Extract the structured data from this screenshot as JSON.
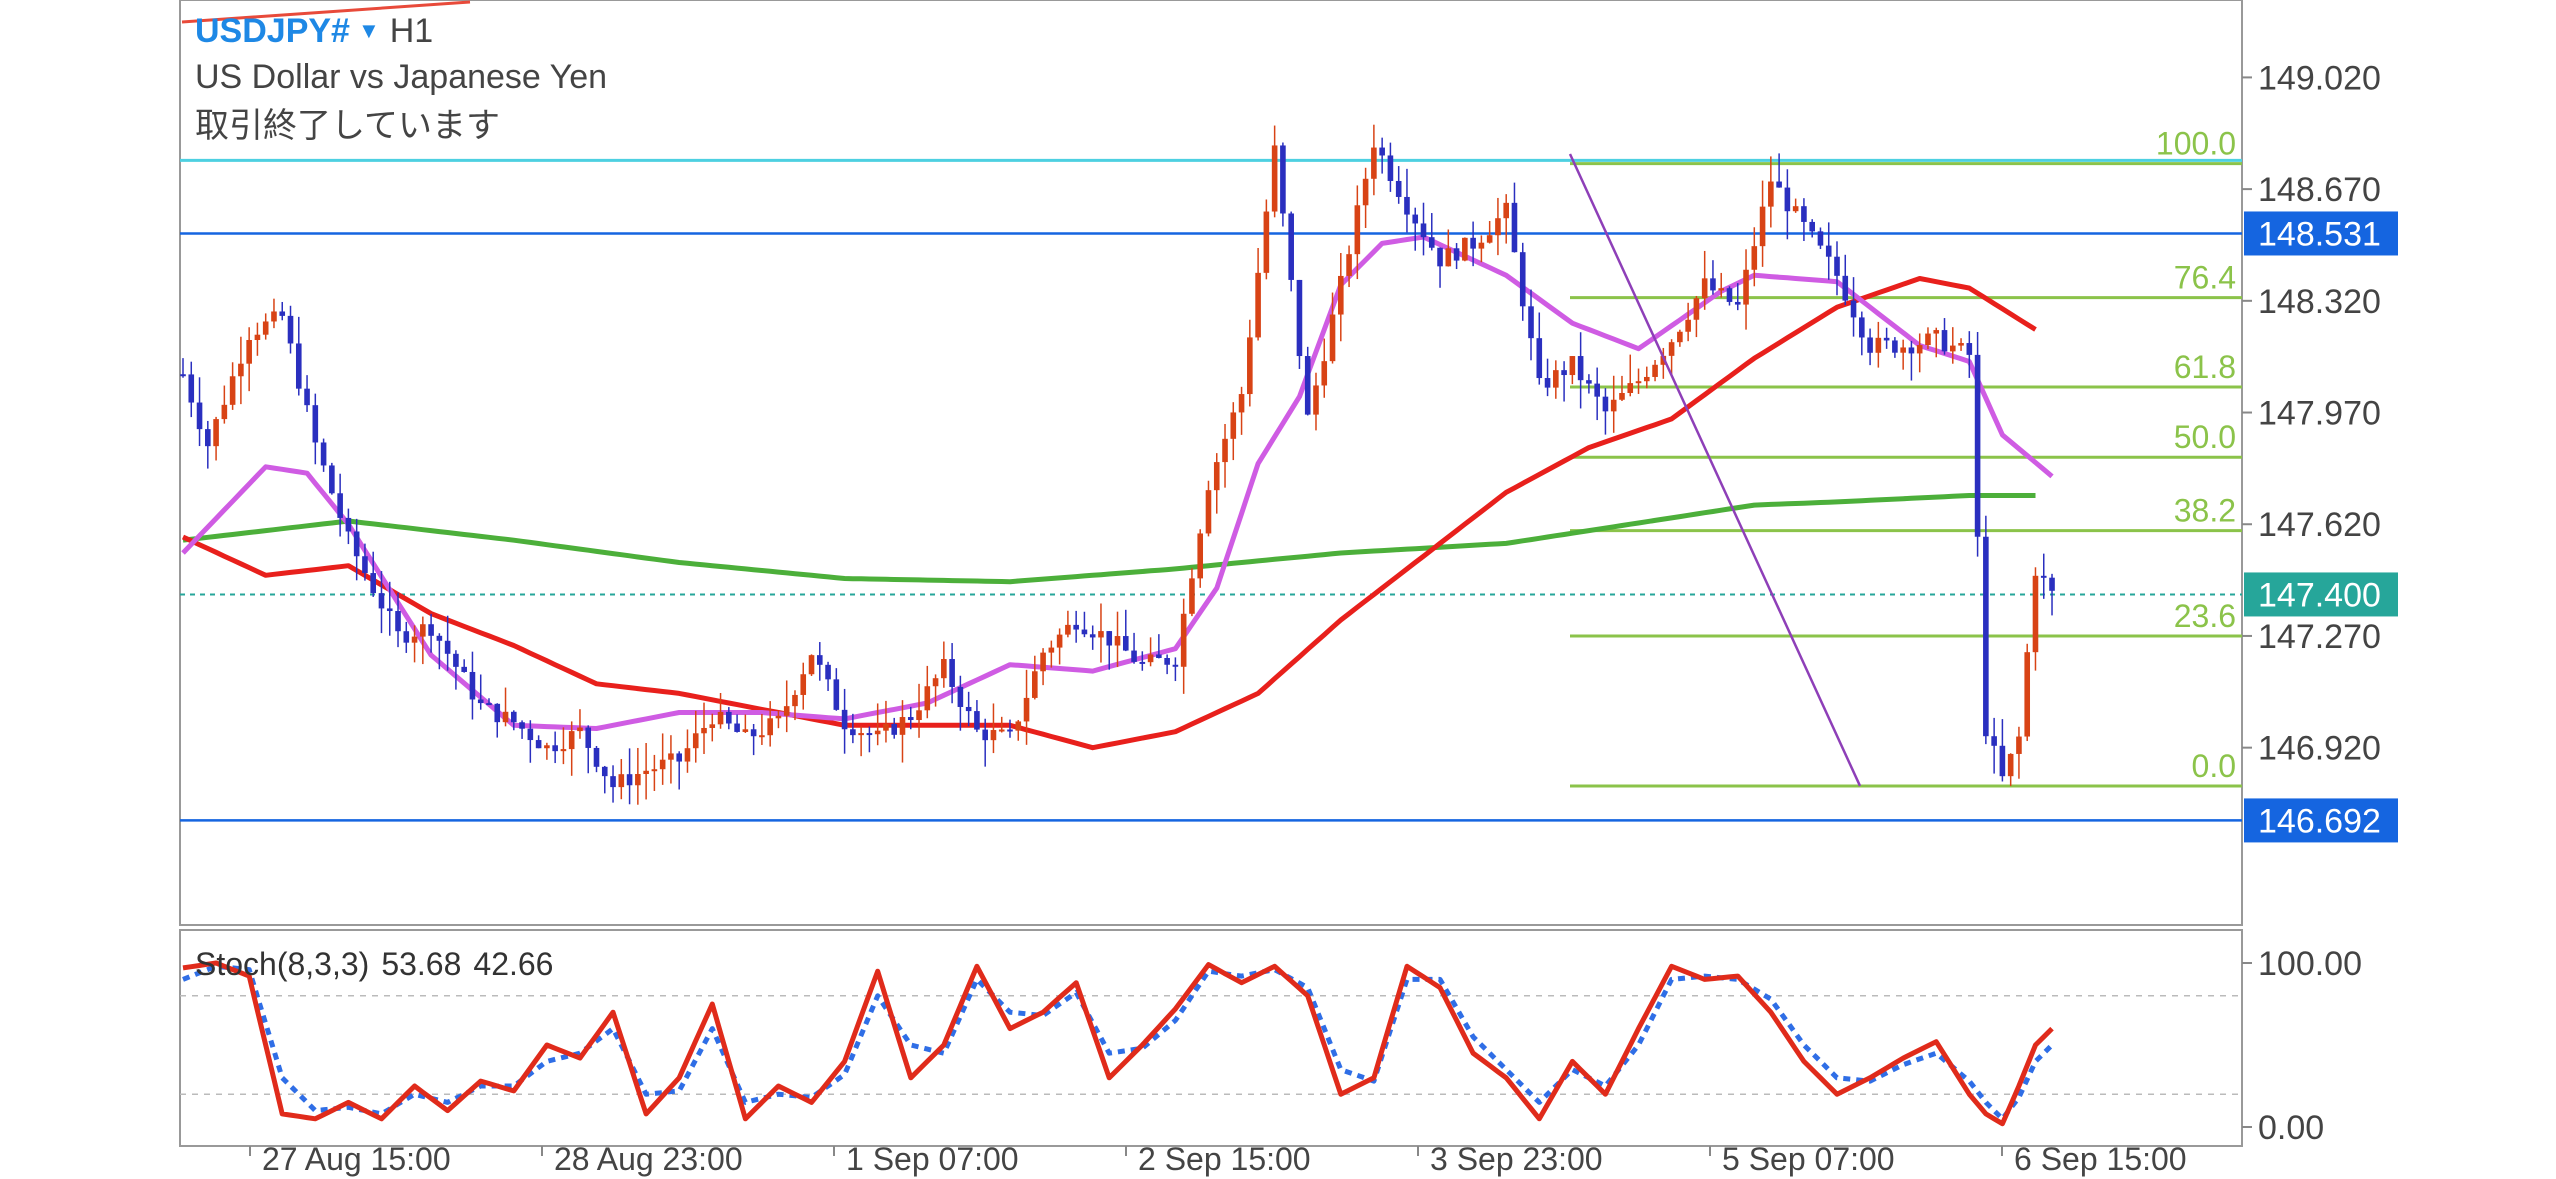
{
  "header": {
    "symbol": "USDJPY#",
    "timeframe": "H1",
    "instrument_name": "US Dollar vs Japanese Yen",
    "market_status": "取引終了しています"
  },
  "colors": {
    "bull_candle": "#d84315",
    "bear_candle": "#2a2fbf",
    "ma_red": "#e8201c",
    "ma_green": "#4caf3a",
    "ma_violet": "#cf5ce3",
    "fib_green": "#8bc34a",
    "price_tag_current": "#26a69a",
    "price_tag_level": "#1565e0",
    "upper_line": "#4dd0e1",
    "trend_line": "#8e3fb8",
    "stoch_main": "#e02b1b",
    "stoch_signal": "#2f6ee6"
  },
  "price_axis": {
    "ticks": [
      "149.020",
      "148.670",
      "148.320",
      "147.970",
      "147.620",
      "147.270",
      "146.920"
    ]
  },
  "price_tags": {
    "upper_level": "148.531",
    "current": "147.400",
    "lower_level": "146.692"
  },
  "fib_levels": [
    {
      "label": "100.0",
      "price": 148.75
    },
    {
      "label": "76.4",
      "price": 148.33
    },
    {
      "label": "61.8",
      "price": 148.05
    },
    {
      "label": "50.0",
      "price": 147.83
    },
    {
      "label": "38.2",
      "price": 147.6
    },
    {
      "label": "23.6",
      "price": 147.27
    },
    {
      "label": "0.0",
      "price": 146.8
    }
  ],
  "time_axis": [
    "27 Aug 15:00",
    "28 Aug 23:00",
    "1 Sep 07:00",
    "2 Sep 15:00",
    "3 Sep 23:00",
    "5 Sep 07:00",
    "6 Sep 15:00"
  ],
  "stochastic": {
    "name": "Stoch(8,3,3)",
    "main_value": "53.68",
    "signal_value": "42.66",
    "axis_ticks": [
      "100.00",
      "0.00"
    ]
  },
  "chart_data": {
    "type": "candlestick",
    "y_range": [
      146.38,
      149.25
    ],
    "candle_key_points": [
      [
        0,
        148.09
      ],
      [
        3,
        147.87
      ],
      [
        8,
        148.22
      ],
      [
        12,
        148.27
      ],
      [
        16,
        147.87
      ],
      [
        20,
        147.57
      ],
      [
        26,
        147.27
      ],
      [
        30,
        147.3
      ],
      [
        36,
        147.05
      ],
      [
        40,
        147.0
      ],
      [
        44,
        146.92
      ],
      [
        48,
        146.97
      ],
      [
        52,
        146.8
      ],
      [
        56,
        146.85
      ],
      [
        60,
        146.88
      ],
      [
        64,
        147.02
      ],
      [
        68,
        146.95
      ],
      [
        72,
        147.0
      ],
      [
        76,
        147.22
      ],
      [
        80,
        147.0
      ],
      [
        84,
        146.95
      ],
      [
        88,
        147.02
      ],
      [
        92,
        147.17
      ],
      [
        96,
        146.97
      ],
      [
        100,
        146.95
      ],
      [
        104,
        147.22
      ],
      [
        108,
        147.32
      ],
      [
        112,
        147.26
      ],
      [
        116,
        147.18
      ],
      [
        120,
        147.2
      ],
      [
        124,
        147.75
      ],
      [
        128,
        148.03
      ],
      [
        132,
        148.79
      ],
      [
        136,
        147.95
      ],
      [
        140,
        148.37
      ],
      [
        144,
        148.82
      ],
      [
        148,
        148.62
      ],
      [
        152,
        148.45
      ],
      [
        156,
        148.5
      ],
      [
        160,
        148.6
      ],
      [
        164,
        148.05
      ],
      [
        168,
        148.12
      ],
      [
        172,
        147.97
      ],
      [
        176,
        148.07
      ],
      [
        180,
        148.2
      ],
      [
        184,
        148.37
      ],
      [
        188,
        148.3
      ],
      [
        192,
        148.7
      ],
      [
        196,
        148.55
      ],
      [
        200,
        148.4
      ],
      [
        204,
        148.18
      ],
      [
        208,
        148.18
      ],
      [
        212,
        148.2
      ],
      [
        216,
        148.15
      ],
      [
        218,
        146.98
      ],
      [
        220,
        146.82
      ],
      [
        222,
        146.95
      ],
      [
        224,
        147.48
      ],
      [
        226,
        147.4
      ]
    ],
    "ma_red_key_points": [
      [
        0,
        147.58
      ],
      [
        10,
        147.46
      ],
      [
        20,
        147.49
      ],
      [
        30,
        147.34
      ],
      [
        40,
        147.24
      ],
      [
        50,
        147.12
      ],
      [
        60,
        147.09
      ],
      [
        80,
        146.99
      ],
      [
        100,
        146.99
      ],
      [
        110,
        146.92
      ],
      [
        120,
        146.97
      ],
      [
        130,
        147.09
      ],
      [
        140,
        147.32
      ],
      [
        150,
        147.52
      ],
      [
        160,
        147.72
      ],
      [
        170,
        147.86
      ],
      [
        180,
        147.95
      ],
      [
        190,
        148.14
      ],
      [
        200,
        148.3
      ],
      [
        210,
        148.39
      ],
      [
        216,
        148.36
      ],
      [
        224,
        148.23
      ]
    ],
    "ma_green_key_points": [
      [
        0,
        147.57
      ],
      [
        20,
        147.63
      ],
      [
        40,
        147.57
      ],
      [
        60,
        147.5
      ],
      [
        80,
        147.45
      ],
      [
        100,
        147.44
      ],
      [
        120,
        147.48
      ],
      [
        140,
        147.53
      ],
      [
        160,
        147.56
      ],
      [
        180,
        147.64
      ],
      [
        190,
        147.68
      ],
      [
        200,
        147.69
      ],
      [
        216,
        147.71
      ],
      [
        224,
        147.71
      ]
    ],
    "ma_violet_key_points": [
      [
        0,
        147.53
      ],
      [
        10,
        147.8
      ],
      [
        15,
        147.78
      ],
      [
        20,
        147.62
      ],
      [
        30,
        147.21
      ],
      [
        40,
        146.99
      ],
      [
        50,
        146.98
      ],
      [
        60,
        147.03
      ],
      [
        70,
        147.03
      ],
      [
        80,
        147.01
      ],
      [
        90,
        147.06
      ],
      [
        100,
        147.18
      ],
      [
        110,
        147.16
      ],
      [
        120,
        147.23
      ],
      [
        125,
        147.42
      ],
      [
        130,
        147.81
      ],
      [
        135,
        148.02
      ],
      [
        140,
        148.37
      ],
      [
        145,
        148.5
      ],
      [
        150,
        148.52
      ],
      [
        160,
        148.4
      ],
      [
        168,
        148.25
      ],
      [
        176,
        148.17
      ],
      [
        186,
        148.35
      ],
      [
        190,
        148.4
      ],
      [
        200,
        148.38
      ],
      [
        210,
        148.18
      ],
      [
        216,
        148.13
      ],
      [
        220,
        147.9
      ],
      [
        226,
        147.77
      ]
    ],
    "stoch_main_key_points": [
      [
        0,
        97
      ],
      [
        4,
        100
      ],
      [
        8,
        92
      ],
      [
        12,
        8
      ],
      [
        16,
        5
      ],
      [
        20,
        15
      ],
      [
        24,
        5
      ],
      [
        28,
        25
      ],
      [
        32,
        10
      ],
      [
        36,
        28
      ],
      [
        40,
        22
      ],
      [
        44,
        50
      ],
      [
        48,
        42
      ],
      [
        52,
        70
      ],
      [
        56,
        8
      ],
      [
        60,
        30
      ],
      [
        64,
        75
      ],
      [
        68,
        5
      ],
      [
        72,
        25
      ],
      [
        76,
        15
      ],
      [
        80,
        40
      ],
      [
        84,
        95
      ],
      [
        88,
        30
      ],
      [
        92,
        50
      ],
      [
        96,
        98
      ],
      [
        100,
        60
      ],
      [
        104,
        70
      ],
      [
        108,
        88
      ],
      [
        112,
        30
      ],
      [
        116,
        50
      ],
      [
        120,
        72
      ],
      [
        124,
        99
      ],
      [
        128,
        88
      ],
      [
        132,
        98
      ],
      [
        136,
        80
      ],
      [
        140,
        20
      ],
      [
        144,
        30
      ],
      [
        148,
        98
      ],
      [
        152,
        85
      ],
      [
        156,
        45
      ],
      [
        160,
        30
      ],
      [
        164,
        5
      ],
      [
        168,
        40
      ],
      [
        172,
        20
      ],
      [
        176,
        60
      ],
      [
        180,
        98
      ],
      [
        184,
        90
      ],
      [
        188,
        92
      ],
      [
        192,
        70
      ],
      [
        196,
        40
      ],
      [
        200,
        20
      ],
      [
        204,
        30
      ],
      [
        208,
        42
      ],
      [
        212,
        52
      ],
      [
        216,
        20
      ],
      [
        218,
        8
      ],
      [
        220,
        2
      ],
      [
        222,
        25
      ],
      [
        224,
        50
      ],
      [
        226,
        60
      ]
    ],
    "stoch_signal_key_points": [
      [
        0,
        90
      ],
      [
        4,
        98
      ],
      [
        8,
        96
      ],
      [
        12,
        30
      ],
      [
        16,
        10
      ],
      [
        20,
        12
      ],
      [
        24,
        8
      ],
      [
        28,
        20
      ],
      [
        32,
        15
      ],
      [
        36,
        25
      ],
      [
        40,
        25
      ],
      [
        44,
        40
      ],
      [
        48,
        45
      ],
      [
        52,
        60
      ],
      [
        56,
        20
      ],
      [
        60,
        22
      ],
      [
        64,
        60
      ],
      [
        68,
        15
      ],
      [
        72,
        20
      ],
      [
        76,
        18
      ],
      [
        80,
        32
      ],
      [
        84,
        80
      ],
      [
        88,
        50
      ],
      [
        92,
        45
      ],
      [
        96,
        90
      ],
      [
        100,
        70
      ],
      [
        104,
        68
      ],
      [
        108,
        82
      ],
      [
        112,
        45
      ],
      [
        116,
        48
      ],
      [
        120,
        65
      ],
      [
        124,
        95
      ],
      [
        128,
        92
      ],
      [
        132,
        96
      ],
      [
        136,
        85
      ],
      [
        140,
        35
      ],
      [
        144,
        28
      ],
      [
        148,
        90
      ],
      [
        152,
        90
      ],
      [
        156,
        55
      ],
      [
        160,
        35
      ],
      [
        164,
        15
      ],
      [
        168,
        35
      ],
      [
        172,
        25
      ],
      [
        176,
        50
      ],
      [
        180,
        90
      ],
      [
        184,
        92
      ],
      [
        188,
        90
      ],
      [
        192,
        78
      ],
      [
        196,
        50
      ],
      [
        200,
        30
      ],
      [
        204,
        28
      ],
      [
        208,
        38
      ],
      [
        212,
        45
      ],
      [
        216,
        28
      ],
      [
        218,
        15
      ],
      [
        220,
        5
      ],
      [
        222,
        18
      ],
      [
        224,
        40
      ],
      [
        226,
        50
      ]
    ]
  }
}
